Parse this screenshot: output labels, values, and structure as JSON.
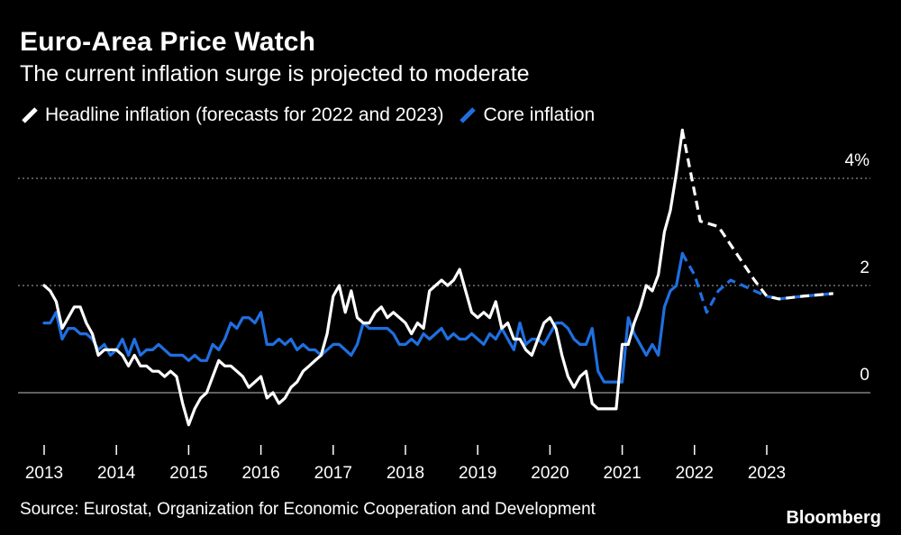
{
  "header": {
    "title": "Euro-Area Price Watch",
    "subtitle": "The current inflation surge is projected to moderate"
  },
  "legend": {
    "headline_label": "Headline inflation (forecasts for 2022 and 2023)",
    "core_label": "Core inflation"
  },
  "footer": {
    "source": "Source: Eurostat, Organization for Economic Cooperation and Development",
    "brand": "Bloomberg"
  },
  "colors": {
    "background": "#000000",
    "headline": "#ffffff",
    "core": "#1f6fe0",
    "grid": "#8a8a8a"
  },
  "chart_data": {
    "type": "line",
    "title": "Euro-Area Price Watch",
    "subtitle": "The current inflation surge is projected to moderate",
    "xlabel": "",
    "ylabel": "",
    "xlim": [
      2013.0,
      2024.1
    ],
    "ylim": [
      -0.8,
      4.6
    ],
    "y_ticks": [
      {
        "value": 0,
        "label": "0"
      },
      {
        "value": 2,
        "label": "2"
      },
      {
        "value": 4,
        "label": "4%"
      }
    ],
    "x_ticks": [
      {
        "value": 2013,
        "label": "2013"
      },
      {
        "value": 2014,
        "label": "2014"
      },
      {
        "value": 2015,
        "label": "2015"
      },
      {
        "value": 2016,
        "label": "2016"
      },
      {
        "value": 2017,
        "label": "2017"
      },
      {
        "value": 2018,
        "label": "2018"
      },
      {
        "value": 2019,
        "label": "2019"
      },
      {
        "value": 2020,
        "label": "2020"
      },
      {
        "value": 2021,
        "label": "2021"
      },
      {
        "value": 2022,
        "label": "2022"
      },
      {
        "value": 2023,
        "label": "2023"
      }
    ],
    "series": [
      {
        "name": "Headline inflation",
        "style": "solid",
        "x_start": 2013.0,
        "step": 0.08333,
        "values": [
          2.0,
          1.9,
          1.7,
          1.2,
          1.4,
          1.6,
          1.6,
          1.3,
          1.1,
          0.7,
          0.8,
          0.8,
          0.8,
          0.7,
          0.5,
          0.7,
          0.5,
          0.5,
          0.4,
          0.4,
          0.3,
          0.4,
          0.3,
          -0.2,
          -0.6,
          -0.3,
          -0.1,
          0.0,
          0.3,
          0.6,
          0.5,
          0.5,
          0.4,
          0.3,
          0.1,
          0.2,
          0.3,
          -0.1,
          0.0,
          -0.2,
          -0.1,
          0.1,
          0.2,
          0.4,
          0.5,
          0.6,
          0.7,
          1.1,
          1.8,
          2.0,
          1.5,
          1.9,
          1.4,
          1.3,
          1.3,
          1.5,
          1.6,
          1.4,
          1.5,
          1.4,
          1.3,
          1.1,
          1.3,
          1.2,
          1.9,
          2.0,
          2.1,
          2.0,
          2.1,
          2.3,
          1.9,
          1.5,
          1.4,
          1.5,
          1.4,
          1.7,
          1.2,
          1.3,
          1.0,
          1.0,
          0.8,
          0.7,
          1.0,
          1.3,
          1.4,
          1.2,
          0.7,
          0.3,
          0.1,
          0.3,
          0.4,
          -0.2,
          -0.3,
          -0.3,
          -0.3,
          -0.3,
          0.9,
          0.9,
          1.3,
          1.6,
          2.0,
          1.9,
          2.2,
          3.0,
          3.4,
          4.1,
          4.9
        ],
        "forecast": {
          "style": "dashed",
          "x": [
            2021.83,
            2022.08,
            2022.33,
            2022.58,
            2022.83,
            2023.0,
            2023.17,
            2023.5,
            2023.92
          ],
          "values": [
            4.9,
            3.2,
            3.1,
            2.6,
            2.1,
            1.8,
            1.75,
            1.8,
            1.85
          ]
        }
      },
      {
        "name": "Core inflation",
        "style": "solid",
        "x_start": 2013.0,
        "step": 0.08333,
        "values": [
          1.3,
          1.3,
          1.5,
          1.0,
          1.2,
          1.2,
          1.1,
          1.1,
          1.0,
          0.8,
          0.9,
          0.7,
          0.8,
          1.0,
          0.7,
          1.0,
          0.7,
          0.8,
          0.8,
          0.9,
          0.8,
          0.7,
          0.7,
          0.7,
          0.6,
          0.7,
          0.6,
          0.6,
          0.9,
          0.8,
          1.0,
          1.3,
          1.2,
          1.4,
          1.4,
          1.3,
          1.5,
          0.9,
          0.9,
          1.0,
          0.9,
          1.0,
          0.8,
          0.9,
          0.8,
          0.8,
          0.7,
          0.8,
          0.9,
          0.9,
          0.8,
          0.7,
          0.9,
          1.3,
          1.2,
          1.2,
          1.2,
          1.2,
          1.1,
          0.9,
          0.9,
          1.0,
          0.9,
          1.1,
          1.0,
          1.1,
          1.2,
          1.0,
          1.1,
          1.0,
          1.0,
          1.1,
          1.0,
          0.9,
          1.1,
          1.0,
          1.2,
          1.0,
          0.8,
          1.3,
          0.9,
          1.0,
          1.0,
          0.9,
          1.1,
          1.3,
          1.3,
          1.2,
          1.0,
          0.9,
          0.9,
          1.2,
          0.4,
          0.2,
          0.2,
          0.2,
          0.2,
          1.4,
          1.1,
          0.9,
          0.7,
          0.9,
          0.7,
          1.6,
          1.9,
          2.0,
          2.6
        ],
        "forecast": {
          "style": "dashed",
          "x": [
            2021.83,
            2022.0,
            2022.17,
            2022.33,
            2022.5,
            2022.67,
            2022.83,
            2023.0,
            2023.17,
            2023.5,
            2023.92
          ],
          "values": [
            2.6,
            2.2,
            1.5,
            1.9,
            2.1,
            2.0,
            1.9,
            1.8,
            1.75,
            1.8,
            1.85
          ]
        }
      }
    ]
  }
}
